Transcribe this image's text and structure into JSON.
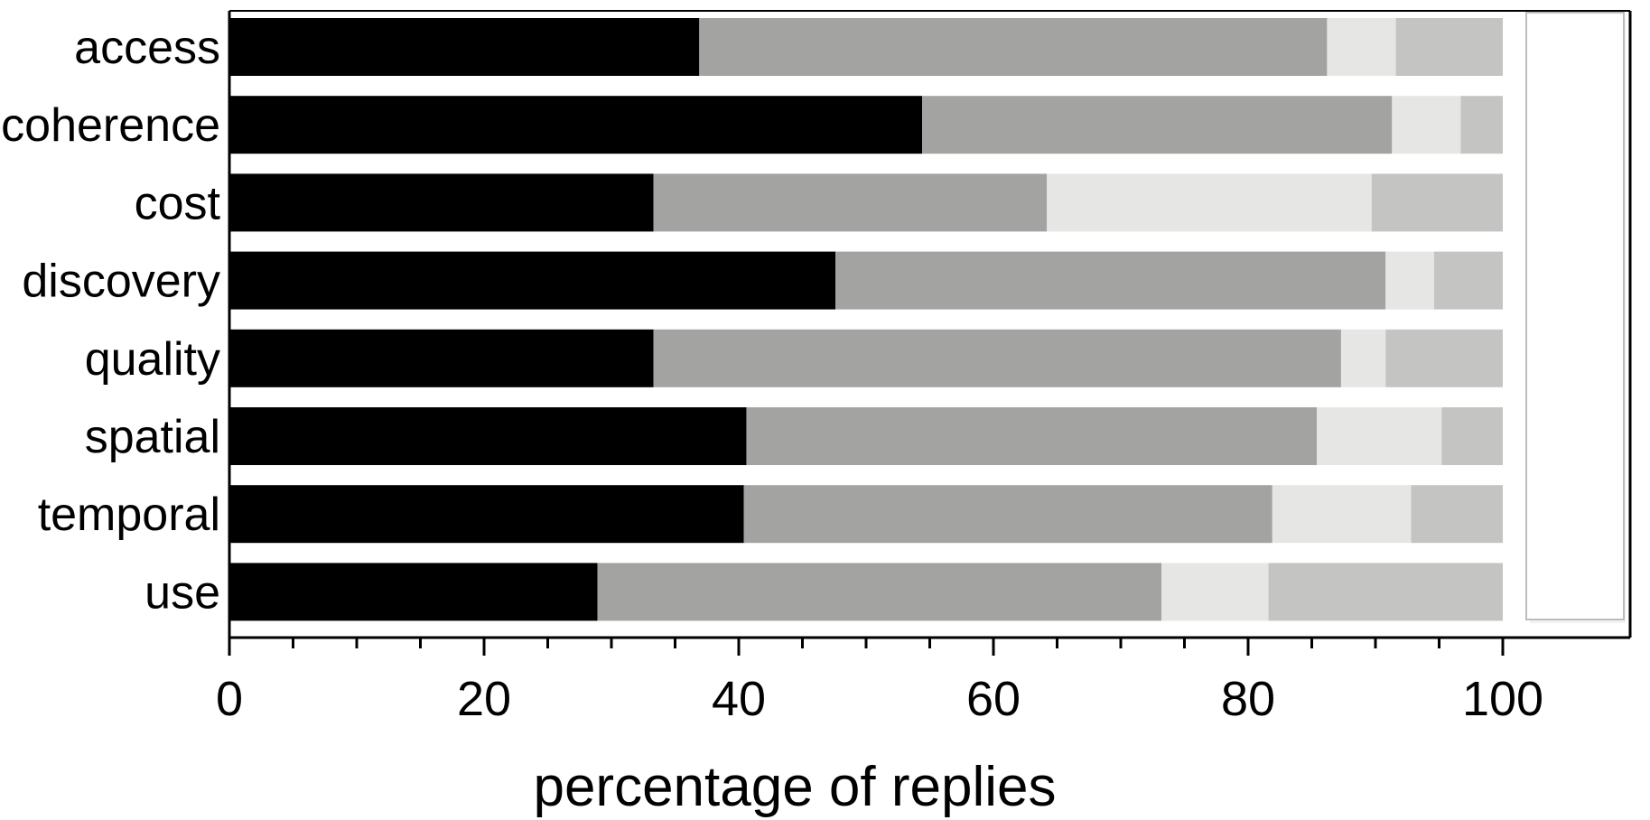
{
  "chart_data": {
    "type": "bar",
    "orientation": "horizontal",
    "stacked": true,
    "title": "",
    "xlabel": "percentage of replies",
    "ylabel": "",
    "xlim": [
      0,
      110
    ],
    "xticks": [
      "0",
      "20",
      "40",
      "60",
      "80",
      "100"
    ],
    "xtick_values": [
      0,
      20,
      40,
      60,
      80,
      100
    ],
    "minor_tick_step": 5,
    "grid": false,
    "legend_visible": false,
    "legend_placement": "right (empty box)",
    "categories": [
      "access",
      "coherence",
      "cost",
      "discovery",
      "quality",
      "spatial",
      "temporal",
      "use"
    ],
    "series": [
      {
        "color": "#000000",
        "values": [
          36.9,
          54.4,
          33.3,
          47.6,
          33.3,
          40.6,
          40.4,
          28.9
        ]
      },
      {
        "color": "#a3a4a2",
        "values": [
          49.3,
          36.9,
          30.9,
          43.2,
          54.0,
          44.8,
          41.5,
          44.3
        ]
      },
      {
        "color": "#e6e7e5",
        "values": [
          5.4,
          5.4,
          25.5,
          3.8,
          3.5,
          9.8,
          10.9,
          8.4
        ]
      },
      {
        "color": "#c4c5c3",
        "values": [
          8.4,
          3.3,
          10.3,
          5.4,
          9.2,
          4.8,
          7.2,
          18.4
        ]
      }
    ]
  }
}
